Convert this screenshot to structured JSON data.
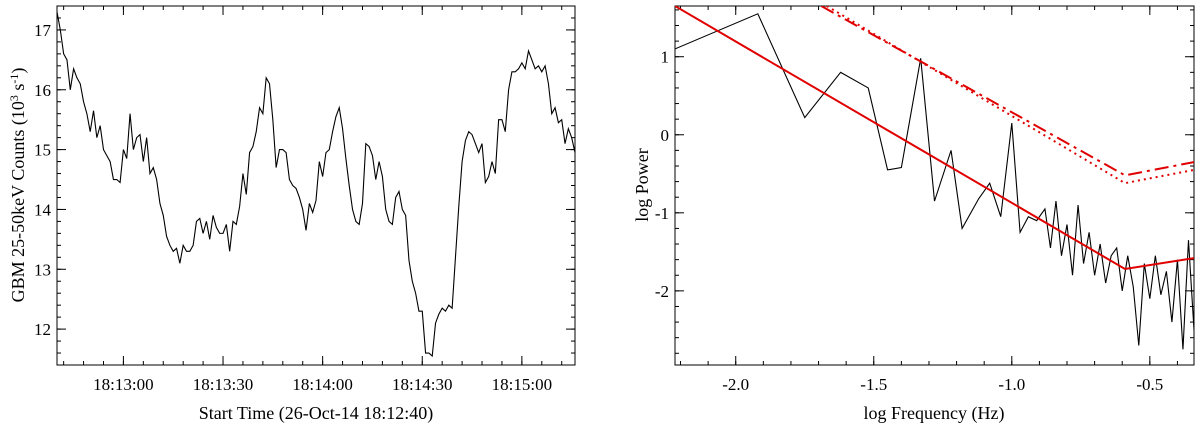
{
  "chart_data": [
    {
      "type": "line",
      "xlabel": "Start Time (26-Oct-14 18:12:40)",
      "ylabel": "GBM 25-50keV Counts (10",
      "ylabel_sup1": "3",
      "ylabel_mid": " s",
      "ylabel_sup2": "-1",
      "ylabel_end": ")",
      "xlim": [
        0,
        156
      ],
      "ylim": [
        11.4,
        17.4
      ],
      "x_unit": "seconds since start time",
      "xticks": [
        {
          "value": 20,
          "label": "18:13:00"
        },
        {
          "value": 50,
          "label": "18:13:30"
        },
        {
          "value": 80,
          "label": "18:14:00"
        },
        {
          "value": 110,
          "label": "18:14:30"
        },
        {
          "value": 140,
          "label": "18:15:00"
        }
      ],
      "yticks": [
        12,
        13,
        14,
        15,
        16,
        17
      ],
      "series": [
        {
          "color": "#000000",
          "x": [
            0,
            1,
            2,
            3,
            4,
            5,
            6,
            7,
            8,
            9,
            10,
            11,
            12,
            13,
            14,
            15,
            16,
            17,
            18,
            19,
            20,
            21,
            22,
            23,
            24,
            25,
            26,
            27,
            28,
            29,
            30,
            31,
            32,
            33,
            34,
            35,
            36,
            37,
            38,
            39,
            40,
            41,
            42,
            43,
            44,
            45,
            46,
            47,
            48,
            49,
            50,
            51,
            52,
            53,
            54,
            55,
            56,
            57,
            58,
            59,
            60,
            61,
            62,
            63,
            64,
            65,
            66,
            67,
            68,
            69,
            70,
            71,
            72,
            73,
            74,
            75,
            76,
            77,
            78,
            79,
            80,
            81,
            82,
            83,
            84,
            85,
            86,
            87,
            88,
            89,
            90,
            91,
            92,
            93,
            94,
            95,
            96,
            97,
            98,
            99,
            100,
            101,
            102,
            103,
            104,
            105,
            106,
            107,
            108,
            109,
            110,
            111,
            112,
            113,
            114,
            115,
            116,
            117,
            118,
            119,
            120,
            121,
            122,
            123,
            124,
            125,
            126,
            127,
            128,
            129,
            130,
            131,
            132,
            133,
            134,
            135,
            136,
            137,
            138,
            139,
            140,
            141,
            142,
            143,
            144,
            145,
            146,
            147,
            148,
            149,
            150,
            151,
            152,
            153,
            154,
            155,
            156
          ],
          "y": [
            17.3,
            17.0,
            16.6,
            16.5,
            16.0,
            16.35,
            16.2,
            16.1,
            15.8,
            15.6,
            15.3,
            15.65,
            15.2,
            15.4,
            15.0,
            14.9,
            14.8,
            14.5,
            14.5,
            14.45,
            15.0,
            14.85,
            15.6,
            15.0,
            15.2,
            15.25,
            14.8,
            15.2,
            14.6,
            14.7,
            14.5,
            14.1,
            13.9,
            13.55,
            13.4,
            13.3,
            13.35,
            13.1,
            13.4,
            13.3,
            13.3,
            13.4,
            13.8,
            13.85,
            13.6,
            13.8,
            13.5,
            13.9,
            13.7,
            13.6,
            13.6,
            13.75,
            13.3,
            13.8,
            13.75,
            14.05,
            14.6,
            14.25,
            14.95,
            15.05,
            15.3,
            15.7,
            15.6,
            16.2,
            16.1,
            15.5,
            14.7,
            15.0,
            15.0,
            14.95,
            14.5,
            14.4,
            14.35,
            14.2,
            14.0,
            13.65,
            14.1,
            13.95,
            14.15,
            14.8,
            14.55,
            14.95,
            15.0,
            15.3,
            15.55,
            15.7,
            15.35,
            14.85,
            14.4,
            14.0,
            13.8,
            13.75,
            14.1,
            15.1,
            15.05,
            14.9,
            14.5,
            14.8,
            14.55,
            14.0,
            13.8,
            13.75,
            14.2,
            14.3,
            14.0,
            13.9,
            13.15,
            12.8,
            12.6,
            12.3,
            12.3,
            11.6,
            11.6,
            11.55,
            12.1,
            12.25,
            12.35,
            12.3,
            12.4,
            12.35,
            13.2,
            14.05,
            14.8,
            15.15,
            15.3,
            15.25,
            15.1,
            14.95,
            15.1,
            14.45,
            14.55,
            14.8,
            14.6,
            15.5,
            15.5,
            15.3,
            16.0,
            16.3,
            16.3,
            16.35,
            16.45,
            16.35,
            16.65,
            16.5,
            16.35,
            16.4,
            16.3,
            16.4,
            16.1,
            15.6,
            15.7,
            15.45,
            15.5,
            15.1,
            15.35,
            15.2,
            14.95
          ]
        }
      ]
    },
    {
      "type": "line",
      "xlabel": "log Frequency (Hz)",
      "ylabel": "log Power",
      "xlim": [
        -2.22,
        -0.34
      ],
      "ylim": [
        -2.95,
        1.65
      ],
      "xticks": [
        {
          "value": -2.0,
          "label": "-2.0"
        },
        {
          "value": -1.5,
          "label": "-1.5"
        },
        {
          "value": -1.0,
          "label": "-1.0"
        },
        {
          "value": -0.5,
          "label": "-0.5"
        }
      ],
      "yticks": [
        {
          "value": 1,
          "label": "1"
        },
        {
          "value": 0,
          "label": "0"
        },
        {
          "value": -1,
          "label": "-1"
        },
        {
          "value": -2,
          "label": "-2"
        }
      ],
      "series": [
        {
          "color": "#000000",
          "dash": "solid",
          "x": [
            -2.22,
            -1.92,
            -1.75,
            -1.62,
            -1.52,
            -1.45,
            -1.4,
            -1.33,
            -1.28,
            -1.22,
            -1.18,
            -1.12,
            -1.08,
            -1.04,
            -1.0,
            -0.97,
            -0.94,
            -0.91,
            -0.88,
            -0.86,
            -0.84,
            -0.82,
            -0.8,
            -0.78,
            -0.76,
            -0.74,
            -0.72,
            -0.7,
            -0.68,
            -0.66,
            -0.64,
            -0.62,
            -0.6,
            -0.58,
            -0.56,
            -0.54,
            -0.52,
            -0.5,
            -0.48,
            -0.46,
            -0.44,
            -0.42,
            -0.4,
            -0.38,
            -0.36,
            -0.34
          ],
          "y": [
            1.1,
            1.55,
            0.22,
            0.8,
            0.6,
            -0.45,
            -0.42,
            0.98,
            -0.85,
            -0.2,
            -1.2,
            -0.82,
            -0.62,
            -1.05,
            0.15,
            -1.25,
            -1.05,
            -1.1,
            -0.95,
            -1.45,
            -0.85,
            -1.55,
            -1.15,
            -1.8,
            -0.9,
            -1.65,
            -1.25,
            -1.8,
            -1.4,
            -1.9,
            -1.55,
            -1.45,
            -2.0,
            -1.55,
            -1.95,
            -2.7,
            -1.65,
            -2.1,
            -1.55,
            -2.05,
            -1.75,
            -2.4,
            -1.6,
            -2.75,
            -1.35,
            -2.5
          ]
        },
        {
          "color": "#e00000",
          "dash": "solid",
          "x": [
            -2.22,
            -0.59,
            -0.34
          ],
          "y": [
            1.65,
            -1.72,
            -1.58
          ]
        },
        {
          "color": "#e00000",
          "dash": "dashdot",
          "x": [
            -1.69,
            -0.59,
            -0.34
          ],
          "y": [
            1.65,
            -0.52,
            -0.35
          ]
        },
        {
          "color": "#e00000",
          "dash": "dotted",
          "x": [
            -1.67,
            -0.59,
            -0.34
          ],
          "y": [
            1.65,
            -0.62,
            -0.45
          ]
        }
      ]
    }
  ]
}
